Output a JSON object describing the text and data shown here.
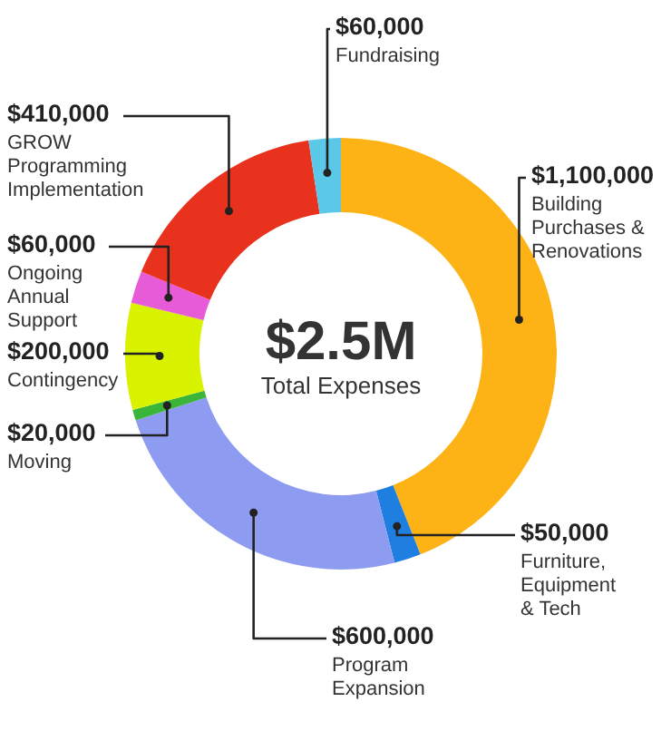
{
  "chart_data": {
    "type": "donut",
    "categories": [
      "Building Purchases & Renovations",
      "Furniture, Equipment & Tech",
      "Program Expansion",
      "Moving",
      "Contingency",
      "Ongoing Annual Support",
      "GROW Programming Implementation",
      "Fundraising"
    ],
    "values": [
      1100000,
      50000,
      600000,
      20000,
      200000,
      60000,
      410000,
      60000
    ],
    "colors": [
      "#fdb316",
      "#1e7fe0",
      "#8d9cf0",
      "#3ab53a",
      "#d9f200",
      "#e85bd8",
      "#e8321e",
      "#5bc8e8"
    ],
    "value_labels": [
      "$1,100,000",
      "$50,000",
      "$600,000",
      "$20,000",
      "$200,000",
      "$60,000",
      "$410,000",
      "$60,000"
    ],
    "annotations": [
      "$2.5M",
      "Total Expenses"
    ]
  }
}
